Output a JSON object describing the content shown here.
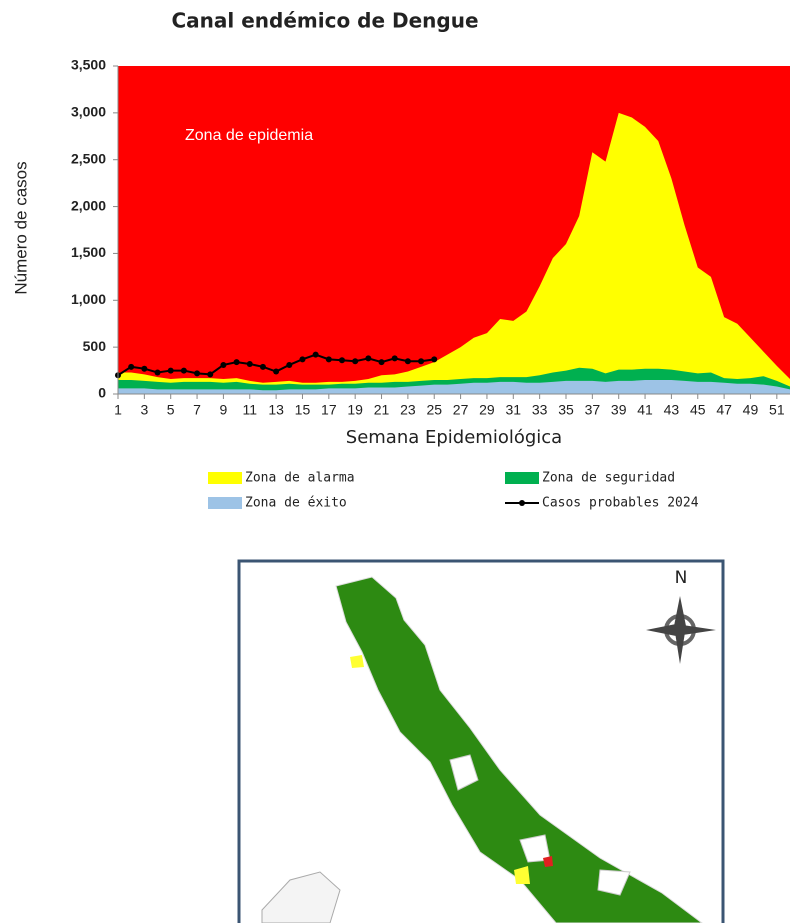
{
  "chart_data": {
    "type": "area",
    "title": "Canal endémico de Dengue",
    "y_label": "Número de casos",
    "x_label": "Semana Epidemiológica",
    "annotation": "Zona de epidemia",
    "background_color": "#ff0000",
    "x": [
      1,
      2,
      3,
      4,
      5,
      6,
      7,
      8,
      9,
      10,
      11,
      12,
      13,
      14,
      15,
      16,
      17,
      18,
      19,
      20,
      21,
      22,
      23,
      24,
      25,
      26,
      27,
      28,
      29,
      30,
      31,
      32,
      33,
      34,
      35,
      36,
      37,
      38,
      39,
      40,
      41,
      42,
      43,
      44,
      45,
      46,
      47,
      48,
      49,
      50,
      51,
      52
    ],
    "xlim": [
      1,
      52
    ],
    "xticks": [
      1,
      3,
      5,
      7,
      9,
      11,
      13,
      15,
      17,
      19,
      21,
      23,
      25,
      27,
      29,
      31,
      33,
      35,
      37,
      39,
      41,
      43,
      45,
      47,
      49,
      51
    ],
    "ylim": [
      0,
      3500
    ],
    "yticks": [
      0,
      500,
      {
        "value": 1000,
        "label": "1,000"
      },
      {
        "value": 1500,
        "label": "1,500"
      },
      {
        "value": 2000,
        "label": "2,000"
      },
      {
        "value": 2500,
        "label": "2,500"
      },
      {
        "value": 3000,
        "label": "3,000"
      },
      {
        "value": 3500,
        "label": "3,500"
      }
    ],
    "legend": "bottom",
    "series": [
      {
        "name": "Zona de alarma",
        "color": "#ffff00",
        "values": [
          230,
          230,
          210,
          180,
          160,
          170,
          170,
          170,
          160,
          170,
          140,
          120,
          130,
          140,
          120,
          120,
          130,
          130,
          140,
          160,
          200,
          210,
          240,
          290,
          340,
          420,
          500,
          600,
          650,
          800,
          780,
          880,
          1150,
          1450,
          1600,
          1900,
          2580,
          2480,
          3000,
          2950,
          2850,
          2700,
          2300,
          1800,
          1350,
          1250,
          820,
          750,
          600,
          450,
          300,
          160
        ]
      },
      {
        "name": "Zona de seguridad",
        "color": "#00b050",
        "values": [
          150,
          150,
          140,
          130,
          120,
          130,
          130,
          130,
          120,
          130,
          110,
          100,
          100,
          110,
          100,
          100,
          100,
          110,
          110,
          120,
          120,
          130,
          130,
          140,
          150,
          150,
          160,
          170,
          170,
          180,
          180,
          180,
          200,
          230,
          250,
          280,
          270,
          220,
          260,
          260,
          270,
          270,
          260,
          240,
          220,
          230,
          170,
          160,
          170,
          190,
          140,
          80
        ]
      },
      {
        "name": "Zona de éxito",
        "color": "#9dc3e6",
        "values": [
          60,
          60,
          60,
          50,
          50,
          50,
          50,
          50,
          50,
          50,
          50,
          40,
          40,
          50,
          50,
          50,
          60,
          60,
          60,
          70,
          70,
          70,
          80,
          90,
          100,
          100,
          110,
          120,
          120,
          130,
          130,
          120,
          120,
          130,
          140,
          140,
          140,
          130,
          140,
          140,
          150,
          150,
          150,
          140,
          130,
          130,
          120,
          110,
          110,
          100,
          80,
          50
        ]
      },
      {
        "name": "Casos probables 2024",
        "color": "#000000",
        "line": true,
        "values": [
          200,
          290,
          270,
          230,
          250,
          250,
          220,
          210,
          310,
          340,
          320,
          290,
          240,
          310,
          370,
          420,
          370,
          360,
          350,
          380,
          340,
          380,
          350,
          350,
          370,
          null,
          null,
          null,
          null,
          null,
          null,
          null,
          null,
          null,
          null,
          null,
          null,
          null,
          null,
          null,
          null,
          null,
          null,
          null,
          null,
          null,
          null,
          null,
          null,
          null,
          null,
          null
        ]
      }
    ]
  },
  "map": {
    "north_label": "N"
  }
}
